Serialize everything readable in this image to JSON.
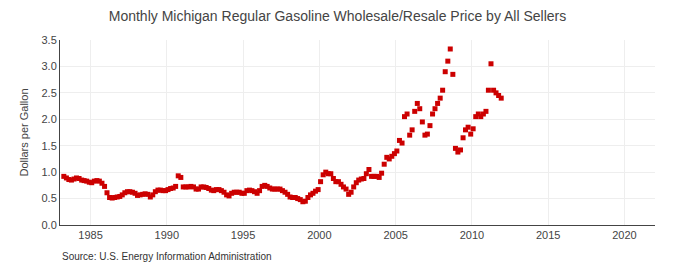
{
  "chart_data": {
    "type": "scatter",
    "title": "Monthly Michigan Regular Gasoline Wholesale/Resale Price by All Sellers",
    "ylabel": "Dollars per Gallon",
    "annotations": [
      "Source: U.S. Energy Information Administration"
    ],
    "color": "#cc0000",
    "marker": "square",
    "grid": true,
    "xlim": [
      1983,
      2022
    ],
    "ylim": [
      0.0,
      3.5
    ],
    "xticks": [
      1985,
      1990,
      1995,
      2000,
      2005,
      2010,
      2015,
      2020
    ],
    "yticks": [
      {
        "value": 0.0,
        "label": "0.0"
      },
      0.5,
      {
        "value": 1.0,
        "label": "1.0"
      },
      1.5,
      {
        "value": 2.0,
        "label": "2.0"
      },
      2.5,
      {
        "value": 3.0,
        "label": "3.0"
      },
      3.5
    ],
    "x": [
      1983.25,
      1983.42,
      1983.58,
      1983.75,
      1983.92,
      1984.08,
      1984.25,
      1984.42,
      1984.58,
      1984.75,
      1984.92,
      1985.08,
      1985.25,
      1985.42,
      1985.58,
      1985.75,
      1985.92,
      1986.08,
      1986.25,
      1986.42,
      1986.58,
      1986.75,
      1986.92,
      1987.08,
      1987.25,
      1987.42,
      1987.58,
      1987.75,
      1987.92,
      1988.08,
      1988.25,
      1988.42,
      1988.58,
      1988.75,
      1988.92,
      1989.08,
      1989.25,
      1989.42,
      1989.58,
      1989.75,
      1989.92,
      1990.08,
      1990.25,
      1990.42,
      1990.58,
      1990.75,
      1990.92,
      1991.08,
      1991.25,
      1991.42,
      1991.58,
      1991.75,
      1991.92,
      1992.08,
      1992.25,
      1992.42,
      1992.58,
      1992.75,
      1992.92,
      1993.08,
      1993.25,
      1993.42,
      1993.58,
      1993.75,
      1993.92,
      1994.08,
      1994.25,
      1994.42,
      1994.58,
      1994.75,
      1994.92,
      1995.08,
      1995.25,
      1995.42,
      1995.58,
      1995.75,
      1995.92,
      1996.08,
      1996.25,
      1996.42,
      1996.58,
      1996.75,
      1996.92,
      1997.08,
      1997.25,
      1997.42,
      1997.58,
      1997.75,
      1997.92,
      1998.08,
      1998.25,
      1998.42,
      1998.58,
      1998.75,
      1998.92,
      1999.08,
      1999.25,
      1999.42,
      1999.58,
      1999.75,
      1999.92,
      2000.08,
      2000.25,
      2000.42,
      2000.58,
      2000.75,
      2000.92,
      2001.08,
      2001.25,
      2001.42,
      2001.58,
      2001.75,
      2001.92,
      2002.08,
      2002.25,
      2002.42,
      2002.58,
      2002.75,
      2002.92,
      2003.08,
      2003.25,
      2003.42,
      2003.58,
      2003.75,
      2003.92,
      2004.08,
      2004.25,
      2004.42,
      2004.58,
      2004.75,
      2004.92,
      2005.08,
      2005.25,
      2005.42,
      2005.58,
      2005.75,
      2005.92,
      2006.08,
      2006.25,
      2006.42,
      2006.58,
      2006.75,
      2006.92,
      2007.08,
      2007.25,
      2007.42,
      2007.58,
      2007.75,
      2007.92,
      2008.08,
      2008.25,
      2008.42,
      2008.58,
      2008.75,
      2008.92,
      2009.08,
      2009.25,
      2009.42,
      2009.58,
      2009.75,
      2009.92,
      2010.08,
      2010.25,
      2010.42,
      2010.58,
      2010.75,
      2010.92,
      2011.08,
      2011.25,
      2011.42,
      2011.58,
      2011.75,
      2011.92
    ],
    "values": [
      0.92,
      0.89,
      0.86,
      0.85,
      0.87,
      0.89,
      0.88,
      0.85,
      0.84,
      0.83,
      0.81,
      0.8,
      0.83,
      0.84,
      0.83,
      0.79,
      0.73,
      0.61,
      0.52,
      0.51,
      0.52,
      0.53,
      0.54,
      0.57,
      0.61,
      0.63,
      0.63,
      0.62,
      0.6,
      0.56,
      0.57,
      0.58,
      0.59,
      0.58,
      0.53,
      0.57,
      0.63,
      0.66,
      0.66,
      0.65,
      0.65,
      0.67,
      0.69,
      0.7,
      0.73,
      0.93,
      0.9,
      0.72,
      0.72,
      0.72,
      0.73,
      0.72,
      0.68,
      0.68,
      0.72,
      0.72,
      0.71,
      0.69,
      0.66,
      0.65,
      0.67,
      0.67,
      0.65,
      0.62,
      0.57,
      0.55,
      0.6,
      0.62,
      0.62,
      0.62,
      0.6,
      0.6,
      0.65,
      0.66,
      0.65,
      0.63,
      0.6,
      0.65,
      0.73,
      0.75,
      0.73,
      0.7,
      0.68,
      0.68,
      0.68,
      0.68,
      0.65,
      0.62,
      0.58,
      0.53,
      0.52,
      0.52,
      0.5,
      0.48,
      0.44,
      0.45,
      0.52,
      0.57,
      0.6,
      0.64,
      0.67,
      0.82,
      0.95,
      1.0,
      0.97,
      0.97,
      0.88,
      0.82,
      0.82,
      0.77,
      0.72,
      0.68,
      0.58,
      0.62,
      0.72,
      0.8,
      0.85,
      0.87,
      0.88,
      0.97,
      1.05,
      0.92,
      0.92,
      0.92,
      0.9,
      0.98,
      1.15,
      1.28,
      1.25,
      1.3,
      1.35,
      1.4,
      1.6,
      1.55,
      2.05,
      2.1,
      1.7,
      1.8,
      2.15,
      2.3,
      2.2,
      1.95,
      1.7,
      1.72,
      1.88,
      2.1,
      2.2,
      2.3,
      2.4,
      2.55,
      2.9,
      3.1,
      3.33,
      2.85,
      1.45,
      1.38,
      1.42,
      1.65,
      1.8,
      1.85,
      1.72,
      1.82,
      2.05,
      2.1,
      2.05,
      2.1,
      2.15,
      2.55,
      3.05,
      2.55,
      2.5,
      2.45,
      2.4
    ]
  }
}
